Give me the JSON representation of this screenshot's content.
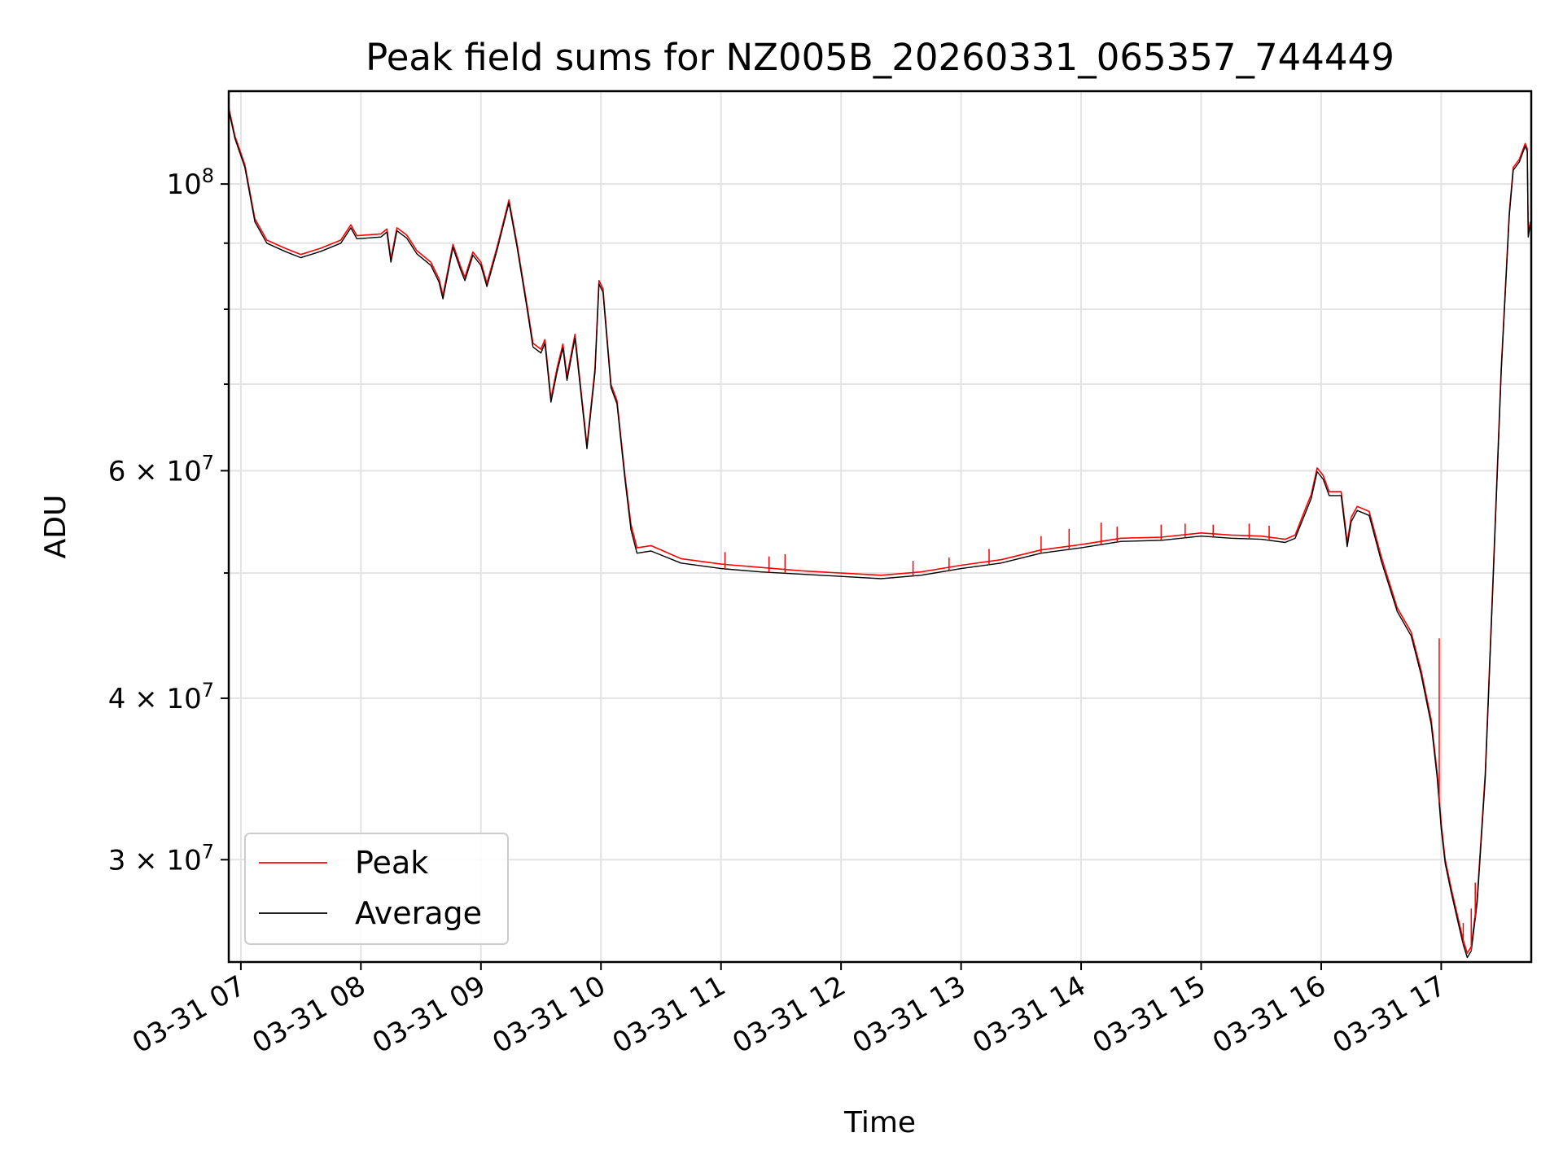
{
  "chart_data": {
    "type": "line",
    "title": "Peak field sums for NZ005B_20260331_065357_744449",
    "xlabel": "Time",
    "ylabel": "ADU",
    "y_scale": "log",
    "ylim": [
      25000000,
      118000000
    ],
    "xlim": [
      "2026-03-31T06:53:57",
      "2026-03-31T17:45:00"
    ],
    "grid": true,
    "legend_position": "lower-left",
    "x_ticks": [
      {
        "value": "2026-03-31T07:00",
        "label": "03-31 07"
      },
      {
        "value": "2026-03-31T08:00",
        "label": "03-31 08"
      },
      {
        "value": "2026-03-31T09:00",
        "label": "03-31 09"
      },
      {
        "value": "2026-03-31T10:00",
        "label": "03-31 10"
      },
      {
        "value": "2026-03-31T11:00",
        "label": "03-31 11"
      },
      {
        "value": "2026-03-31T12:00",
        "label": "03-31 12"
      },
      {
        "value": "2026-03-31T13:00",
        "label": "03-31 13"
      },
      {
        "value": "2026-03-31T14:00",
        "label": "03-31 14"
      },
      {
        "value": "2026-03-31T15:00",
        "label": "03-31 15"
      },
      {
        "value": "2026-03-31T16:00",
        "label": "03-31 16"
      },
      {
        "value": "2026-03-31T17:00",
        "label": "03-31 17"
      }
    ],
    "y_major_ticks": [
      {
        "value": 100000000,
        "mantissa": "",
        "base": "10",
        "exp": "8"
      },
      {
        "value": 60000000,
        "mantissa": "6 × ",
        "base": "10",
        "exp": "7"
      },
      {
        "value": 40000000,
        "mantissa": "4 × ",
        "base": "10",
        "exp": "7"
      },
      {
        "value": 30000000,
        "mantissa": "3 × ",
        "base": "10",
        "exp": "7"
      }
    ],
    "y_minor_gridlines": [
      50000000,
      70000000,
      80000000,
      90000000
    ],
    "series": [
      {
        "name": "Peak",
        "color": "#ff0000",
        "points": [
          [
            "2026-03-31T06:54:00",
            114500000
          ],
          [
            "2026-03-31T06:57:00",
            109000000
          ],
          [
            "2026-03-31T07:02:00",
            103500000
          ],
          [
            "2026-03-31T07:07:00",
            94000000
          ],
          [
            "2026-03-31T07:13:00",
            90500000
          ],
          [
            "2026-03-31T07:22:00",
            89200000
          ],
          [
            "2026-03-31T07:30:00",
            88200000
          ],
          [
            "2026-03-31T07:40:00",
            89200000
          ],
          [
            "2026-03-31T07:50:00",
            90500000
          ],
          [
            "2026-03-31T07:55:00",
            93000000
          ],
          [
            "2026-03-31T07:58:00",
            91200000
          ],
          [
            "2026-03-31T08:10:00",
            91500000
          ],
          [
            "2026-03-31T08:13:00",
            92300000
          ],
          [
            "2026-03-31T08:15:00",
            87500000
          ],
          [
            "2026-03-31T08:18:00",
            92500000
          ],
          [
            "2026-03-31T08:23:00",
            91300000
          ],
          [
            "2026-03-31T08:28:00",
            88800000
          ],
          [
            "2026-03-31T08:35:00",
            87000000
          ],
          [
            "2026-03-31T08:39:00",
            84500000
          ],
          [
            "2026-03-31T08:41:00",
            82000000
          ],
          [
            "2026-03-31T08:46:00",
            89800000
          ],
          [
            "2026-03-31T08:50:00",
            86200000
          ],
          [
            "2026-03-31T08:52:00",
            84700000
          ],
          [
            "2026-03-31T08:56:00",
            88600000
          ],
          [
            "2026-03-31T09:00:00",
            87000000
          ],
          [
            "2026-03-31T09:03:00",
            83800000
          ],
          [
            "2026-03-31T09:08:00",
            89300000
          ],
          [
            "2026-03-31T09:14:00",
            97200000
          ],
          [
            "2026-03-31T09:18:00",
            90000000
          ],
          [
            "2026-03-31T09:23:00",
            80700000
          ],
          [
            "2026-03-31T09:26:00",
            75300000
          ],
          [
            "2026-03-31T09:30:00",
            74500000
          ],
          [
            "2026-03-31T09:32:00",
            75800000
          ],
          [
            "2026-03-31T09:35:00",
            68200000
          ],
          [
            "2026-03-31T09:38:00",
            72000000
          ],
          [
            "2026-03-31T09:41:00",
            75200000
          ],
          [
            "2026-03-31T09:43:00",
            71000000
          ],
          [
            "2026-03-31T09:47:00",
            76500000
          ],
          [
            "2026-03-31T09:53:00",
            62800000
          ],
          [
            "2026-03-31T09:57:00",
            72000000
          ],
          [
            "2026-03-31T09:59:00",
            84200000
          ],
          [
            "2026-03-31T10:01:00",
            83000000
          ],
          [
            "2026-03-31T10:05:00",
            70000000
          ],
          [
            "2026-03-31T10:08:00",
            68000000
          ],
          [
            "2026-03-31T10:12:00",
            59500000
          ],
          [
            "2026-03-31T10:15:00",
            54500000
          ],
          [
            "2026-03-31T10:18:00",
            52300000
          ],
          [
            "2026-03-31T10:25:00",
            52500000
          ],
          [
            "2026-03-31T10:40:00",
            51300000
          ],
          [
            "2026-03-31T11:00:00",
            50800000
          ],
          [
            "2026-03-31T11:20:00",
            50500000
          ],
          [
            "2026-03-31T11:40:00",
            50200000
          ],
          [
            "2026-03-31T12:00:00",
            50000000
          ],
          [
            "2026-03-31T12:20:00",
            49800000
          ],
          [
            "2026-03-31T12:40:00",
            50100000
          ],
          [
            "2026-03-31T13:00:00",
            50700000
          ],
          [
            "2026-03-31T13:20:00",
            51200000
          ],
          [
            "2026-03-31T13:40:00",
            52100000
          ],
          [
            "2026-03-31T14:00:00",
            52600000
          ],
          [
            "2026-03-31T14:20:00",
            53200000
          ],
          [
            "2026-03-31T14:40:00",
            53300000
          ],
          [
            "2026-03-31T15:00:00",
            53700000
          ],
          [
            "2026-03-31T15:15:00",
            53500000
          ],
          [
            "2026-03-31T15:30:00",
            53400000
          ],
          [
            "2026-03-31T15:42:00",
            53100000
          ],
          [
            "2026-03-31T15:47:00",
            53500000
          ],
          [
            "2026-03-31T15:52:00",
            56000000
          ],
          [
            "2026-03-31T15:55:00",
            57500000
          ],
          [
            "2026-03-31T15:58:00",
            60300000
          ],
          [
            "2026-03-31T16:01:00",
            59500000
          ],
          [
            "2026-03-31T16:04:00",
            57800000
          ],
          [
            "2026-03-31T16:10:00",
            57800000
          ],
          [
            "2026-03-31T16:12:00",
            54500000
          ],
          [
            "2026-03-31T16:13:00",
            52800000
          ],
          [
            "2026-03-31T16:15:00",
            55200000
          ],
          [
            "2026-03-31T16:18:00",
            56300000
          ],
          [
            "2026-03-31T16:24:00",
            55800000
          ],
          [
            "2026-03-31T16:30:00",
            51500000
          ],
          [
            "2026-03-31T16:38:00",
            47000000
          ],
          [
            "2026-03-31T16:45:00",
            45000000
          ],
          [
            "2026-03-31T16:50:00",
            42000000
          ],
          [
            "2026-03-31T16:55:00",
            38500000
          ],
          [
            "2026-03-31T16:58:00",
            35000000
          ],
          [
            "2026-03-31T17:00:00",
            32000000
          ],
          [
            "2026-03-31T17:02:00",
            30000000
          ],
          [
            "2026-03-31T17:05:00",
            28500000
          ],
          [
            "2026-03-31T17:08:00",
            27200000
          ],
          [
            "2026-03-31T17:11:00",
            26000000
          ],
          [
            "2026-03-31T17:13:00",
            25400000
          ],
          [
            "2026-03-31T17:15:00",
            25700000
          ],
          [
            "2026-03-31T17:18:00",
            28000000
          ],
          [
            "2026-03-31T17:22:00",
            35000000
          ],
          [
            "2026-03-31T17:26:00",
            50000000
          ],
          [
            "2026-03-31T17:30:00",
            72000000
          ],
          [
            "2026-03-31T17:34:00",
            95000000
          ],
          [
            "2026-03-31T17:36:00",
            103000000
          ],
          [
            "2026-03-31T17:39:00",
            104500000
          ],
          [
            "2026-03-31T17:42:00",
            107500000
          ],
          [
            "2026-03-31T17:43:00",
            106500000
          ],
          [
            "2026-03-31T17:43:30",
            91500000
          ],
          [
            "2026-03-31T17:44:30",
            93500000
          ]
        ]
      },
      {
        "name": "Average",
        "color": "#000000",
        "points": [
          [
            "2026-03-31T06:54:00",
            114000000
          ],
          [
            "2026-03-31T06:57:00",
            108500000
          ],
          [
            "2026-03-31T07:02:00",
            103000000
          ],
          [
            "2026-03-31T07:07:00",
            93500000
          ],
          [
            "2026-03-31T07:13:00",
            90000000
          ],
          [
            "2026-03-31T07:22:00",
            88700000
          ],
          [
            "2026-03-31T07:30:00",
            87700000
          ],
          [
            "2026-03-31T07:40:00",
            88700000
          ],
          [
            "2026-03-31T07:50:00",
            90000000
          ],
          [
            "2026-03-31T07:55:00",
            92500000
          ],
          [
            "2026-03-31T07:58:00",
            90700000
          ],
          [
            "2026-03-31T08:10:00",
            91000000
          ],
          [
            "2026-03-31T08:13:00",
            91800000
          ],
          [
            "2026-03-31T08:15:00",
            87000000
          ],
          [
            "2026-03-31T08:18:00",
            92000000
          ],
          [
            "2026-03-31T08:23:00",
            90800000
          ],
          [
            "2026-03-31T08:28:00",
            88300000
          ],
          [
            "2026-03-31T08:35:00",
            86500000
          ],
          [
            "2026-03-31T08:39:00",
            84000000
          ],
          [
            "2026-03-31T08:41:00",
            81500000
          ],
          [
            "2026-03-31T08:46:00",
            89300000
          ],
          [
            "2026-03-31T08:50:00",
            85700000
          ],
          [
            "2026-03-31T08:52:00",
            84200000
          ],
          [
            "2026-03-31T08:56:00",
            88100000
          ],
          [
            "2026-03-31T09:00:00",
            86500000
          ],
          [
            "2026-03-31T09:03:00",
            83300000
          ],
          [
            "2026-03-31T09:08:00",
            88800000
          ],
          [
            "2026-03-31T09:14:00",
            96700000
          ],
          [
            "2026-03-31T09:18:00",
            89500000
          ],
          [
            "2026-03-31T09:23:00",
            80200000
          ],
          [
            "2026-03-31T09:26:00",
            74800000
          ],
          [
            "2026-03-31T09:30:00",
            74000000
          ],
          [
            "2026-03-31T09:32:00",
            75300000
          ],
          [
            "2026-03-31T09:35:00",
            67800000
          ],
          [
            "2026-03-31T09:38:00",
            71500000
          ],
          [
            "2026-03-31T09:41:00",
            74700000
          ],
          [
            "2026-03-31T09:43:00",
            70500000
          ],
          [
            "2026-03-31T09:47:00",
            76000000
          ],
          [
            "2026-03-31T09:53:00",
            62400000
          ],
          [
            "2026-03-31T09:57:00",
            71500000
          ],
          [
            "2026-03-31T09:59:00",
            83700000
          ],
          [
            "2026-03-31T10:01:00",
            82500000
          ],
          [
            "2026-03-31T10:05:00",
            69600000
          ],
          [
            "2026-03-31T10:08:00",
            67600000
          ],
          [
            "2026-03-31T10:12:00",
            59100000
          ],
          [
            "2026-03-31T10:15:00",
            54000000
          ],
          [
            "2026-03-31T10:18:00",
            51800000
          ],
          [
            "2026-03-31T10:25:00",
            52000000
          ],
          [
            "2026-03-31T10:40:00",
            50900000
          ],
          [
            "2026-03-31T11:00:00",
            50400000
          ],
          [
            "2026-03-31T11:20:00",
            50100000
          ],
          [
            "2026-03-31T11:40:00",
            49900000
          ],
          [
            "2026-03-31T12:00:00",
            49700000
          ],
          [
            "2026-03-31T12:20:00",
            49500000
          ],
          [
            "2026-03-31T12:40:00",
            49800000
          ],
          [
            "2026-03-31T13:00:00",
            50400000
          ],
          [
            "2026-03-31T13:20:00",
            50900000
          ],
          [
            "2026-03-31T13:40:00",
            51800000
          ],
          [
            "2026-03-31T14:00:00",
            52300000
          ],
          [
            "2026-03-31T14:20:00",
            52900000
          ],
          [
            "2026-03-31T14:40:00",
            53000000
          ],
          [
            "2026-03-31T15:00:00",
            53400000
          ],
          [
            "2026-03-31T15:15:00",
            53200000
          ],
          [
            "2026-03-31T15:30:00",
            53100000
          ],
          [
            "2026-03-31T15:42:00",
            52800000
          ],
          [
            "2026-03-31T15:47:00",
            53200000
          ],
          [
            "2026-03-31T15:52:00",
            55600000
          ],
          [
            "2026-03-31T15:55:00",
            57100000
          ],
          [
            "2026-03-31T15:58:00",
            59900000
          ],
          [
            "2026-03-31T16:01:00",
            59100000
          ],
          [
            "2026-03-31T16:04:00",
            57400000
          ],
          [
            "2026-03-31T16:10:00",
            57400000
          ],
          [
            "2026-03-31T16:12:00",
            54100000
          ],
          [
            "2026-03-31T16:13:00",
            52400000
          ],
          [
            "2026-03-31T16:15:00",
            54800000
          ],
          [
            "2026-03-31T16:18:00",
            55900000
          ],
          [
            "2026-03-31T16:24:00",
            55400000
          ],
          [
            "2026-03-31T16:30:00",
            51100000
          ],
          [
            "2026-03-31T16:38:00",
            46700000
          ],
          [
            "2026-03-31T16:45:00",
            44700000
          ],
          [
            "2026-03-31T16:50:00",
            41700000
          ],
          [
            "2026-03-31T16:55:00",
            38200000
          ],
          [
            "2026-03-31T16:58:00",
            34700000
          ],
          [
            "2026-03-31T17:00:00",
            31700000
          ],
          [
            "2026-03-31T17:02:00",
            29800000
          ],
          [
            "2026-03-31T17:05:00",
            28300000
          ],
          [
            "2026-03-31T17:08:00",
            27000000
          ],
          [
            "2026-03-31T17:11:00",
            25800000
          ],
          [
            "2026-03-31T17:13:00",
            25200000
          ],
          [
            "2026-03-31T17:15:00",
            25500000
          ],
          [
            "2026-03-31T17:18:00",
            27800000
          ],
          [
            "2026-03-31T17:22:00",
            34700000
          ],
          [
            "2026-03-31T17:26:00",
            49600000
          ],
          [
            "2026-03-31T17:30:00",
            71500000
          ],
          [
            "2026-03-31T17:34:00",
            94500000
          ],
          [
            "2026-03-31T17:36:00",
            102500000
          ],
          [
            "2026-03-31T17:39:00",
            104000000
          ],
          [
            "2026-03-31T17:42:00",
            107000000
          ],
          [
            "2026-03-31T17:43:00",
            106000000
          ],
          [
            "2026-03-31T17:43:30",
            91000000
          ],
          [
            "2026-03-31T17:44:30",
            93000000
          ]
        ]
      }
    ],
    "peak_spikes": [
      [
        "2026-03-31T11:02:00",
        51900000
      ],
      [
        "2026-03-31T11:24:00",
        51500000
      ],
      [
        "2026-03-31T11:32:00",
        51700000
      ],
      [
        "2026-03-31T12:36:00",
        51100000
      ],
      [
        "2026-03-31T12:54:00",
        51400000
      ],
      [
        "2026-03-31T13:14:00",
        52200000
      ],
      [
        "2026-03-31T13:40:00",
        53400000
      ],
      [
        "2026-03-31T13:54:00",
        54100000
      ],
      [
        "2026-03-31T14:10:00",
        54700000
      ],
      [
        "2026-03-31T14:18:00",
        54300000
      ],
      [
        "2026-03-31T14:40:00",
        54500000
      ],
      [
        "2026-03-31T14:52:00",
        54600000
      ],
      [
        "2026-03-31T15:06:00",
        54500000
      ],
      [
        "2026-03-31T15:24:00",
        54600000
      ],
      [
        "2026-03-31T15:34:00",
        54400000
      ],
      [
        "2026-03-31T16:59:00",
        44500000
      ],
      [
        "2026-03-31T17:11:00",
        26800000
      ],
      [
        "2026-03-31T17:15:00",
        27500000
      ],
      [
        "2026-03-31T17:17:00",
        28800000
      ]
    ]
  }
}
